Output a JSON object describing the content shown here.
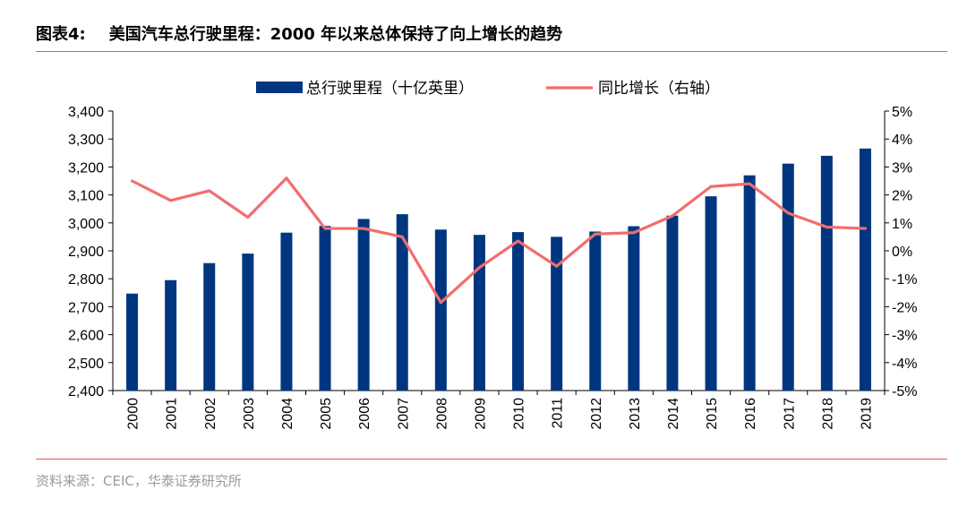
{
  "figure": {
    "label": "图表4:",
    "title": "美国汽车总行驶里程：2000 年以来总体保持了向上增长的趋势",
    "source": "资料来源：CEIC，华泰证券研究所"
  },
  "chart_data": {
    "type": "bar",
    "categories": [
      "2000",
      "2001",
      "2002",
      "2003",
      "2004",
      "2005",
      "2006",
      "2007",
      "2008",
      "2009",
      "2010",
      "2011",
      "2012",
      "2013",
      "2014",
      "2015",
      "2016",
      "2017",
      "2018",
      "2019"
    ],
    "series": [
      {
        "name": "总行驶里程（十亿英里）",
        "type": "bar",
        "axis": "left",
        "color": "#003680",
        "values": [
          2747,
          2795,
          2856,
          2890,
          2965,
          2989,
          3014,
          3031,
          2976,
          2957,
          2967,
          2950,
          2969,
          2988,
          3026,
          3095,
          3170,
          3212,
          3240,
          3266
        ]
      },
      {
        "name": "同比增长（右轴）",
        "type": "line",
        "axis": "right",
        "color": "#f26d6d",
        "values": [
          2.5,
          1.8,
          2.15,
          1.2,
          2.6,
          0.8,
          0.8,
          0.5,
          -1.85,
          -0.6,
          0.35,
          -0.55,
          0.6,
          0.65,
          1.25,
          2.3,
          2.4,
          1.35,
          0.85,
          0.8
        ]
      }
    ],
    "y_left": {
      "ylim": [
        2400,
        3400
      ],
      "ticks": [
        "2,400",
        "2,500",
        "2,600",
        "2,700",
        "2,800",
        "2,900",
        "3,000",
        "3,100",
        "3,200",
        "3,300",
        "3,400"
      ]
    },
    "y_right": {
      "ylim": [
        -5,
        5
      ],
      "ticks": [
        "-5%",
        "-4%",
        "-3%",
        "-2%",
        "-1%",
        "0%",
        "1%",
        "2%",
        "3%",
        "4%",
        "5%"
      ]
    },
    "grid": false,
    "legend": "top-center"
  }
}
